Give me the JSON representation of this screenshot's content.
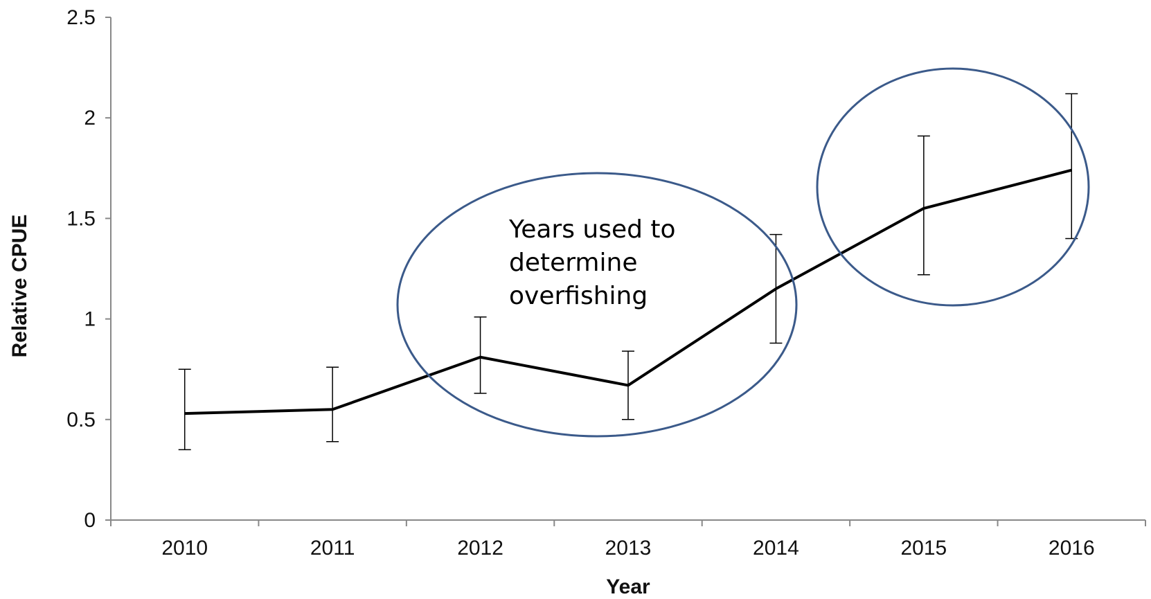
{
  "chart_data": {
    "type": "line",
    "title": "",
    "xlabel": "Year",
    "ylabel": "Relative CPUE",
    "categories": [
      "2010",
      "2011",
      "2012",
      "2013",
      "2014",
      "2015",
      "2016"
    ],
    "series": [
      {
        "values": [
          0.53,
          0.55,
          0.81,
          0.67,
          1.15,
          1.55,
          1.74
        ],
        "error_low": [
          0.35,
          0.39,
          0.63,
          0.5,
          0.88,
          1.22,
          1.4
        ],
        "error_high": [
          0.75,
          0.76,
          1.01,
          0.84,
          1.42,
          1.91,
          2.12
        ]
      }
    ],
    "ylim": [
      0,
      2.5
    ],
    "yticks": [
      "0",
      "0.5",
      "1",
      "1.5",
      "2",
      "2.5"
    ],
    "grid": false,
    "legend": "none",
    "colors": {
      "line": "#000000",
      "error_bar": "#000000",
      "axis": "#888888",
      "ellipse": "#3b5a8a"
    },
    "annotations": [
      {
        "text_lines": [
          "Years used to",
          "determine",
          "overfishing"
        ],
        "ellipse_x_range": [
          "2012",
          "2014"
        ]
      },
      {
        "text_lines": [],
        "ellipse_x_range": [
          "2015",
          "2016"
        ]
      }
    ]
  }
}
